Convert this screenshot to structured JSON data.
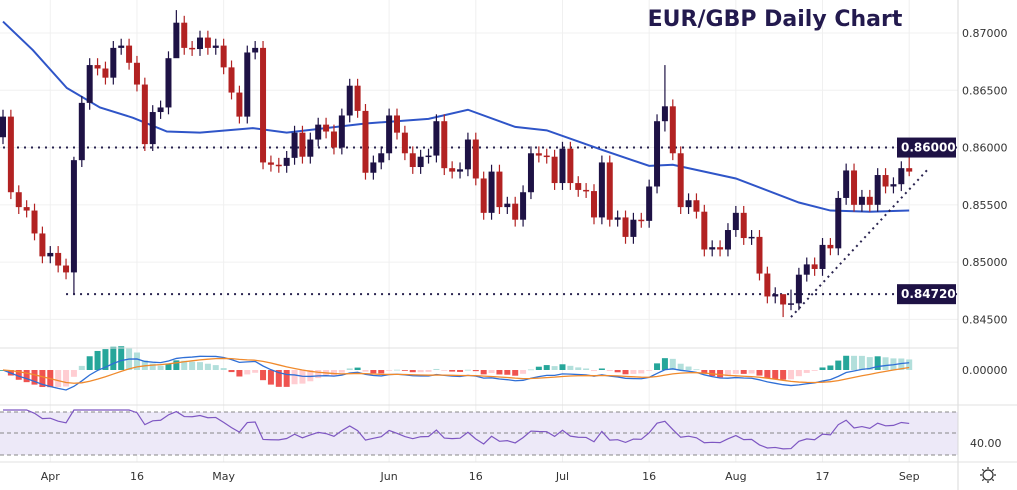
{
  "chart_data": {
    "type": "candlestick",
    "title": "EUR/GBP Daily Chart",
    "ylim": [
      0.8435,
      0.874
    ],
    "y_ticks": [
      "0.87000",
      "0.86500",
      "0.86000",
      "0.85500",
      "0.85000",
      "0.84500"
    ],
    "y_tick_values": [
      0.87,
      0.865,
      0.86,
      0.855,
      0.85,
      0.845
    ],
    "x_ticks": [
      {
        "label": "Apr",
        "index": 6
      },
      {
        "label": "16",
        "index": 17
      },
      {
        "label": "May",
        "index": 28
      },
      {
        "label": "Jun",
        "index": 49
      },
      {
        "label": "16",
        "index": 60
      },
      {
        "label": "Jul",
        "index": 71
      },
      {
        "label": "16",
        "index": 82
      },
      {
        "label": "Aug",
        "index": 93
      },
      {
        "label": "17",
        "index": 104
      },
      {
        "label": "Sep",
        "index": 115
      }
    ],
    "first_open": 0.8609,
    "closes": [
      0.8627,
      0.8561,
      0.8548,
      0.8545,
      0.8525,
      0.8505,
      0.8508,
      0.8497,
      0.8491,
      0.8589,
      0.8639,
      0.8672,
      0.8669,
      0.8661,
      0.8687,
      0.8689,
      0.8674,
      0.8655,
      0.8603,
      0.8631,
      0.8635,
      0.8678,
      0.8709,
      0.8687,
      0.8686,
      0.8696,
      0.8687,
      0.8689,
      0.867,
      0.8648,
      0.8627,
      0.8683,
      0.8687,
      0.8587,
      0.8585,
      0.8584,
      0.8591,
      0.8613,
      0.8592,
      0.8607,
      0.862,
      0.8614,
      0.86,
      0.8628,
      0.8654,
      0.8632,
      0.8578,
      0.8587,
      0.8595,
      0.8628,
      0.8613,
      0.8595,
      0.8583,
      0.8592,
      0.8593,
      0.8623,
      0.8582,
      0.8579,
      0.8581,
      0.8607,
      0.8573,
      0.8543,
      0.8579,
      0.8548,
      0.8551,
      0.8537,
      0.8561,
      0.8595,
      0.8593,
      0.8592,
      0.8569,
      0.8599,
      0.8569,
      0.8563,
      0.8562,
      0.8539,
      0.8587,
      0.8537,
      0.8539,
      0.8522,
      0.8537,
      0.8536,
      0.8566,
      0.8623,
      0.8636,
      0.8595,
      0.8548,
      0.8554,
      0.8544,
      0.8511,
      0.8513,
      0.8511,
      0.8528,
      0.8543,
      0.8521,
      0.8522,
      0.849,
      0.847,
      0.8472,
      0.8463,
      0.8464,
      0.8489,
      0.8498,
      0.8494,
      0.8515,
      0.8512,
      0.8556,
      0.858,
      0.855,
      0.8557,
      0.855,
      0.8576,
      0.8566,
      0.8568,
      0.8582,
      0.8579
    ],
    "wick": 0.0006,
    "wick_overrides": {
      "9": [
        0.8592,
        0.8472
      ],
      "22": [
        0.872,
        0.87
      ],
      "84": [
        0.8672,
        0.8614
      ],
      "99": [
        0.847,
        0.8452
      ],
      "100": [
        0.8476,
        0.8458
      ],
      "115": [
        0.86,
        0.8575
      ]
    },
    "ma_series": {
      "name": "Moving average",
      "color": "#2f55c8",
      "points": [
        [
          0,
          0.871
        ],
        [
          3.8,
          0.8685
        ],
        [
          8.1,
          0.8652
        ],
        [
          12.3,
          0.8635
        ],
        [
          16.5,
          0.8626
        ],
        [
          20.8,
          0.8614
        ],
        [
          25,
          0.8613
        ],
        [
          31.7,
          0.8617
        ],
        [
          36,
          0.8613
        ],
        [
          46,
          0.8621
        ],
        [
          54,
          0.8625
        ],
        [
          59,
          0.8633
        ],
        [
          65,
          0.8618
        ],
        [
          69,
          0.8615
        ],
        [
          76,
          0.8598
        ],
        [
          82,
          0.8584
        ],
        [
          85,
          0.8585
        ],
        [
          93,
          0.8573
        ],
        [
          101,
          0.8552
        ],
        [
          105,
          0.8545
        ],
        [
          110,
          0.8544
        ],
        [
          115,
          0.8545
        ]
      ]
    },
    "levels": [
      {
        "value": 0.86,
        "label": "0.86000",
        "from_index": 0
      },
      {
        "value": 0.8472,
        "label": "0.84720",
        "from_index": 8
      }
    ],
    "trendline": {
      "from": [
        100,
        0.8452
      ],
      "to": [
        117.5,
        0.8582
      ]
    },
    "macd": {
      "zero_label": "0.00000",
      "colors": {
        "macd": "#2f6fd6",
        "signal": "#f08a2c",
        "hist_pos": "#26a69a",
        "hist_pos_fade": "#b2dfdb",
        "hist_neg": "#ef5350",
        "hist_neg_fade": "#ffcdd2"
      }
    },
    "rsi": {
      "label": "40.00",
      "band_fill": "#ede9f8",
      "line_color": "#7e57c2"
    },
    "colors": {
      "up": "#1e1245",
      "down": "#b22222",
      "level_label_bg": "#1e1245"
    }
  }
}
